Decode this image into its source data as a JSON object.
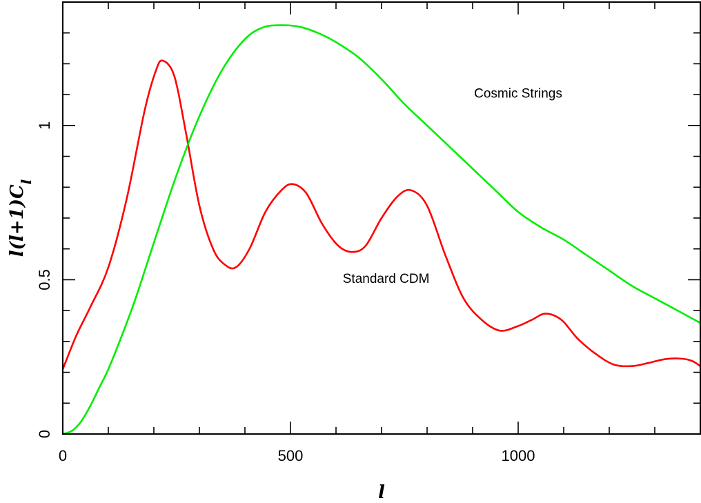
{
  "chart_data": {
    "type": "line",
    "title": "",
    "xlabel": "l",
    "ylabel": "l(l+1)C_l",
    "xlim": [
      0,
      1400
    ],
    "ylim": [
      0,
      1.4
    ],
    "x_ticks": [
      0,
      500,
      1000
    ],
    "x_tick_labels": [
      "0",
      "500",
      "1000"
    ],
    "y_ticks": [
      0,
      0.5,
      1
    ],
    "y_tick_labels": [
      "0",
      "0.5",
      "1"
    ],
    "grid": false,
    "legend": "none",
    "annotations": [
      {
        "text": "Cosmic Strings",
        "x": 1000,
        "y": 1.09
      },
      {
        "text": "Standard CDM",
        "x": 710,
        "y": 0.49
      }
    ],
    "series": [
      {
        "color": "#ff0000",
        "x": [
          0,
          30,
          60,
          100,
          140,
          180,
          205,
          220,
          245,
          270,
          300,
          330,
          355,
          380,
          410,
          445,
          480,
          505,
          535,
          570,
          605,
          635,
          665,
          700,
          735,
          765,
          800,
          840,
          880,
          920,
          960,
          1000,
          1030,
          1060,
          1095,
          1130,
          1170,
          1210,
          1250,
          1285,
          1320,
          1350,
          1380,
          1400
        ],
        "y": [
          0.21,
          0.32,
          0.41,
          0.54,
          0.76,
          1.05,
          1.18,
          1.21,
          1.16,
          0.98,
          0.74,
          0.6,
          0.55,
          0.54,
          0.6,
          0.72,
          0.79,
          0.81,
          0.78,
          0.68,
          0.61,
          0.59,
          0.61,
          0.7,
          0.77,
          0.79,
          0.74,
          0.58,
          0.44,
          0.37,
          0.335,
          0.35,
          0.37,
          0.39,
          0.37,
          0.31,
          0.26,
          0.225,
          0.22,
          0.23,
          0.242,
          0.245,
          0.238,
          0.22
        ]
      },
      {
        "color": "#00ee00",
        "x": [
          0,
          20,
          40,
          60,
          80,
          100,
          130,
          160,
          200,
          250,
          300,
          350,
          400,
          440,
          480,
          520,
          560,
          600,
          650,
          700,
          750,
          800,
          850,
          900,
          950,
          1000,
          1050,
          1100,
          1150,
          1200,
          1250,
          1300,
          1350,
          1400
        ],
        "y": [
          0,
          0.01,
          0.04,
          0.09,
          0.15,
          0.21,
          0.32,
          0.44,
          0.62,
          0.84,
          1.03,
          1.18,
          1.28,
          1.318,
          1.325,
          1.32,
          1.3,
          1.27,
          1.22,
          1.15,
          1.07,
          1.0,
          0.93,
          0.86,
          0.79,
          0.72,
          0.67,
          0.63,
          0.58,
          0.53,
          0.48,
          0.44,
          0.4,
          0.36
        ]
      }
    ]
  }
}
